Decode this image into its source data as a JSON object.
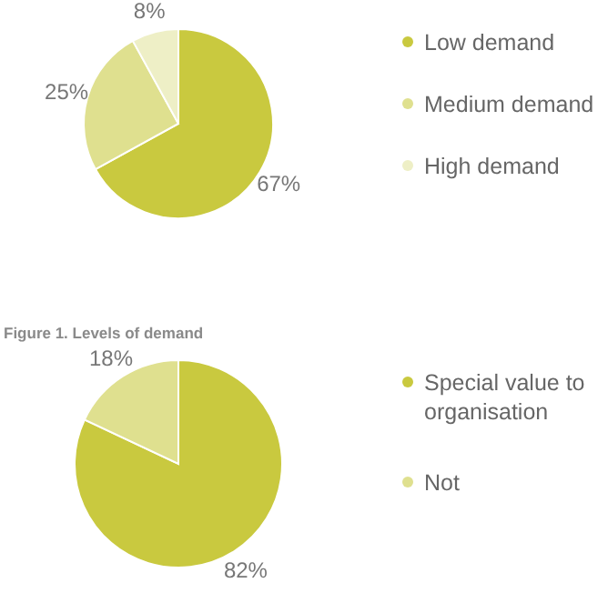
{
  "chart_data": [
    {
      "type": "pie",
      "categories": [
        "Low demand",
        "Medium demand",
        "High demand"
      ],
      "values": [
        67,
        25,
        8
      ],
      "colors": [
        "#c9c93f",
        "#dfe08f",
        "#eeefc6"
      ],
      "value_labels": [
        "67%",
        "25%",
        "8%"
      ],
      "legend": "right",
      "annotations": [
        "Figure 1. Levels of demand"
      ]
    },
    {
      "type": "pie",
      "categories": [
        "Special value to organisation",
        "Not"
      ],
      "values": [
        82,
        18
      ],
      "colors": [
        "#c9c93f",
        "#dfe08f"
      ],
      "value_labels": [
        "82%",
        "18%"
      ],
      "legend": "right"
    }
  ]
}
